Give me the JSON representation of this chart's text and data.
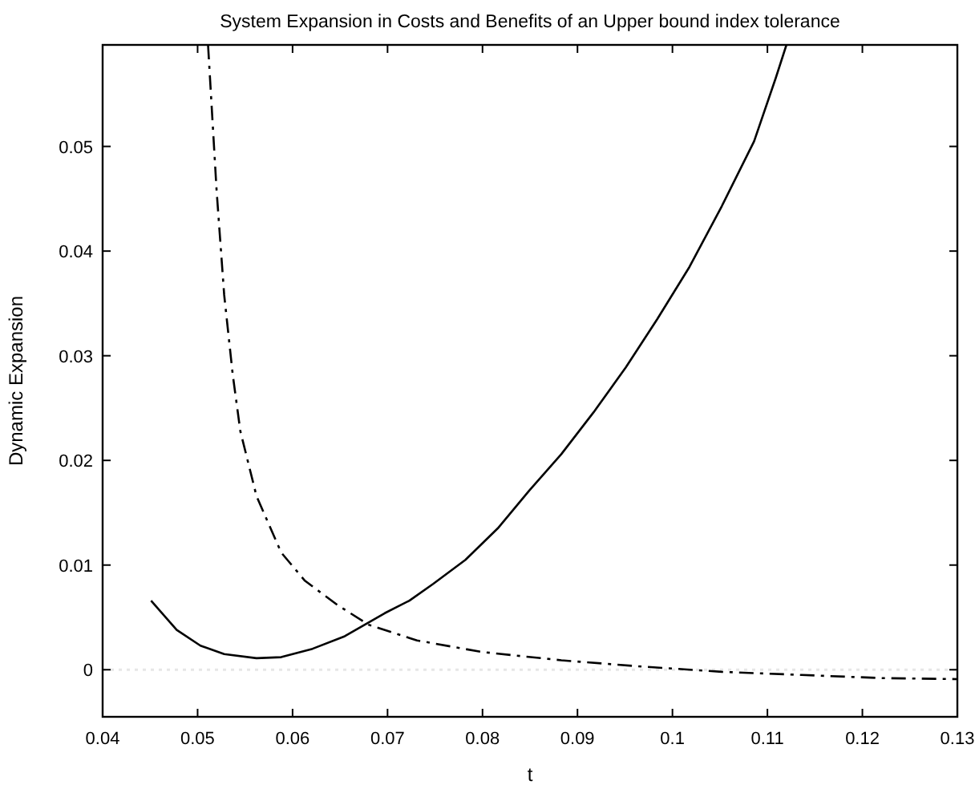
{
  "chart_data": {
    "type": "line",
    "title": "System Expansion in Costs and Benefits of an Upper bound index tolerance",
    "xlabel": "t",
    "ylabel": "Dynamic Expansion",
    "xlim": [
      0.04,
      0.13
    ],
    "xticks": [
      0.04,
      0.05,
      0.06,
      0.07,
      0.08,
      0.09,
      0.1,
      0.11,
      0.12,
      0.13
    ],
    "ylim": [
      -0.0045,
      0.0597
    ],
    "yticks": [
      0,
      0.01,
      0.02,
      0.03,
      0.04,
      0.05
    ],
    "grid": false,
    "ref_lines": [
      {
        "axis": "y",
        "value": 0,
        "color": "#e6e6e6",
        "line_style": "dotted"
      }
    ],
    "series": [
      {
        "color": "#000000",
        "line_style": "solid",
        "x": [
          0.0451,
          0.0478,
          0.0503,
          0.0528,
          0.0562,
          0.0588,
          0.0621,
          0.0655,
          0.0697,
          0.0723,
          0.0748,
          0.0782,
          0.0816,
          0.0849,
          0.0883,
          0.0917,
          0.0951,
          0.0984,
          0.1018,
          0.1052,
          0.1086,
          0.1109,
          0.112
        ],
        "values": [
          0.0066,
          0.0038,
          0.0023,
          0.0015,
          0.0011,
          0.0012,
          0.002,
          0.0032,
          0.0054,
          0.0066,
          0.0082,
          0.0105,
          0.0135,
          0.0171,
          0.0206,
          0.0246,
          0.0289,
          0.0335,
          0.0385,
          0.0443,
          0.0505,
          0.0566,
          0.0597
        ]
      },
      {
        "color": "#000000",
        "line_style": "dashed",
        "x": [
          0.0511,
          0.052,
          0.0528,
          0.0537,
          0.0545,
          0.0562,
          0.0588,
          0.0613,
          0.0647,
          0.068,
          0.0731,
          0.0799,
          0.0883,
          0.0968,
          0.1052,
          0.1136,
          0.1221,
          0.13
        ],
        "values": [
          0.0597,
          0.0458,
          0.0358,
          0.0282,
          0.0228,
          0.0166,
          0.0112,
          0.0085,
          0.0062,
          0.0043,
          0.0028,
          0.0017,
          0.0009,
          0.0003,
          -0.0002,
          -0.0005,
          -0.0008,
          -0.0009
        ]
      }
    ]
  }
}
